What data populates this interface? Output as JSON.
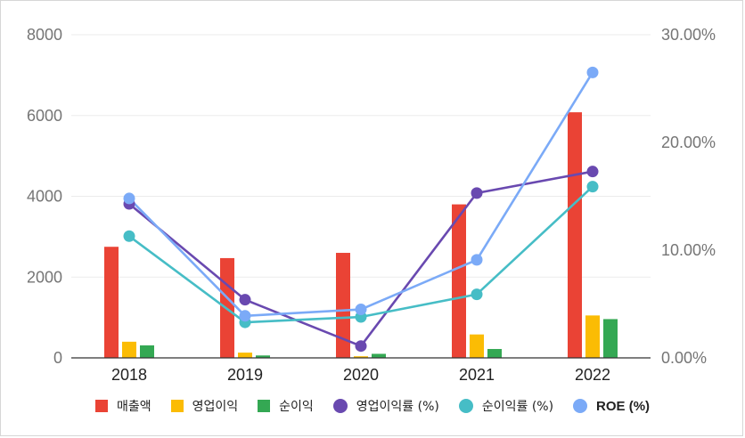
{
  "chart_data": {
    "type": "bar+line",
    "categories": [
      "2018",
      "2019",
      "2020",
      "2021",
      "2022"
    ],
    "left_axis": {
      "ylim": [
        0,
        8000
      ],
      "ticks": [
        "0",
        "2000",
        "4000",
        "6000",
        "8000"
      ]
    },
    "right_axis": {
      "ylim": [
        0,
        30
      ],
      "ticks": [
        "0.00%",
        "10.00%",
        "20.00%",
        "30.00%"
      ]
    },
    "grid": true,
    "legend_position": "bottom",
    "bar_series": [
      {
        "name": "매출액",
        "color": "#EA4335",
        "values": [
          2750,
          2470,
          2600,
          3800,
          6080
        ]
      },
      {
        "name": "영업이익",
        "color": "#FBBC04",
        "values": [
          400,
          130,
          40,
          580,
          1050
        ]
      },
      {
        "name": "순이익",
        "color": "#34A853",
        "values": [
          310,
          60,
          100,
          220,
          960
        ]
      }
    ],
    "line_series": [
      {
        "name": "영업이익률 (%)",
        "color": "#6949B0",
        "values": [
          14.3,
          5.4,
          1.1,
          15.3,
          17.3
        ]
      },
      {
        "name": "순이익률 (%)",
        "color": "#46BDC6",
        "values": [
          11.3,
          3.3,
          3.8,
          5.9,
          15.9
        ]
      },
      {
        "name": "ROE (%)",
        "color": "#7BAAF7",
        "values": [
          14.8,
          3.9,
          4.5,
          9.1,
          26.5
        ]
      }
    ]
  },
  "legend": {
    "items": [
      {
        "label": "매출액",
        "color": "#EA4335",
        "shape": "square"
      },
      {
        "label": "영업이익",
        "color": "#FBBC04",
        "shape": "square"
      },
      {
        "label": "순이익",
        "color": "#34A853",
        "shape": "square"
      },
      {
        "label": "영업이익률 (%)",
        "color": "#6949B0",
        "shape": "circle"
      },
      {
        "label": "순이익률 (%)",
        "color": "#46BDC6",
        "shape": "circle"
      },
      {
        "label": "ROE (%)",
        "color": "#7BAAF7",
        "shape": "circle"
      }
    ]
  }
}
